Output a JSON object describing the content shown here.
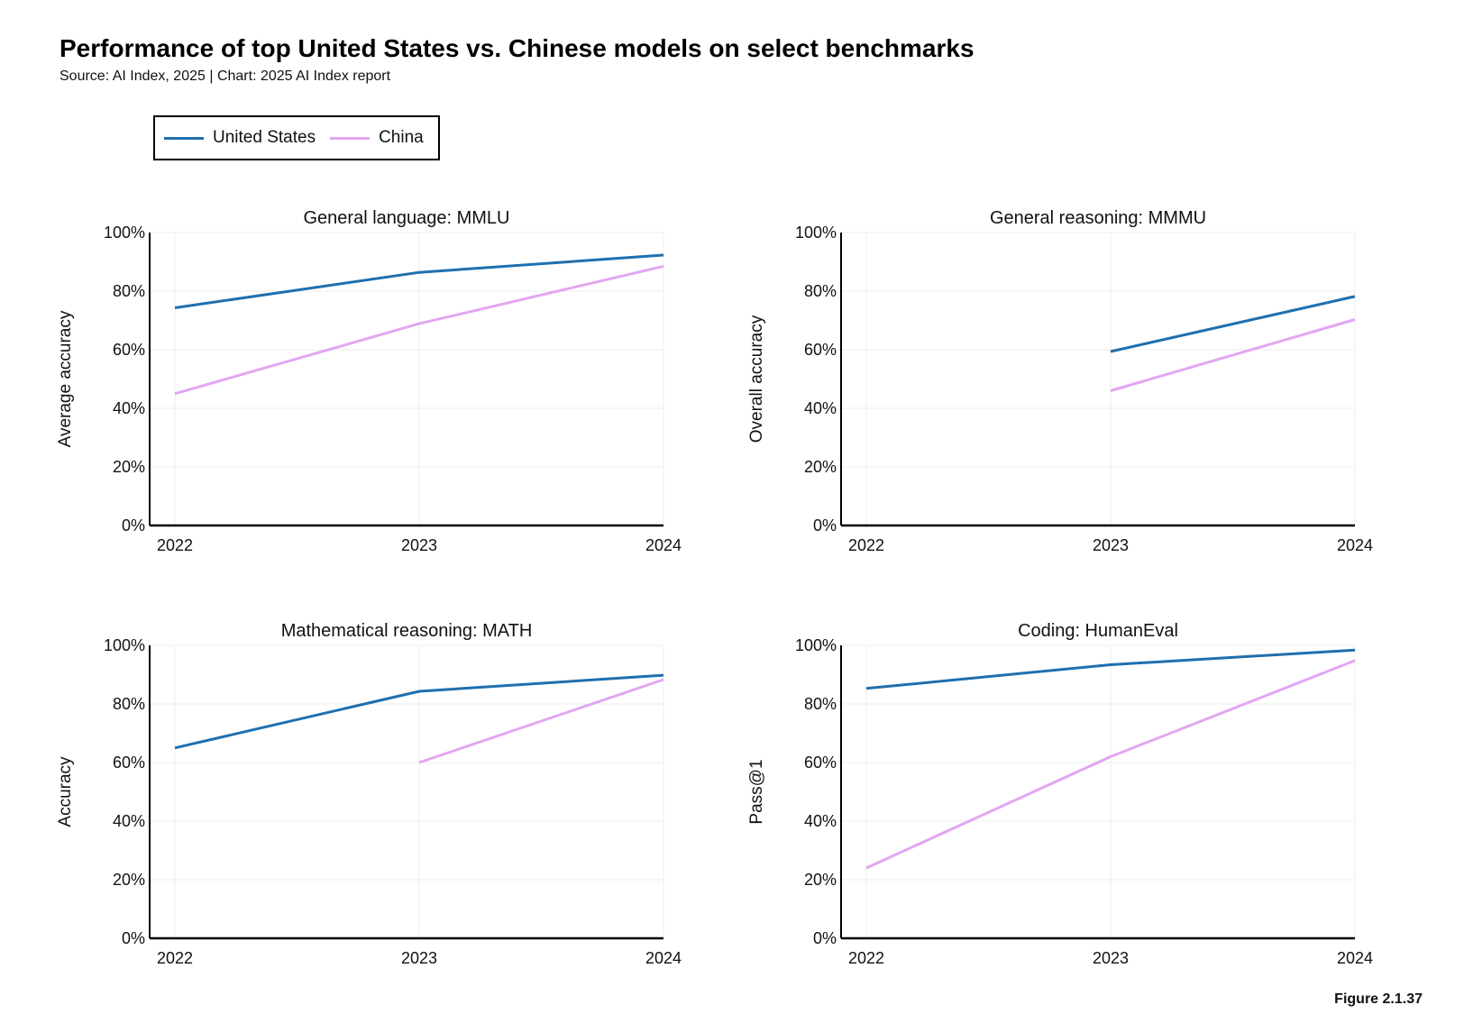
{
  "title": "Performance of top United States vs. Chinese models on select benchmarks",
  "subtitle": "Source: AI Index, 2025 | Chart: 2025 AI Index report",
  "figure_label": "Figure 2.1.37",
  "legend": [
    {
      "name": "United States",
      "color": "#1f6fae"
    },
    {
      "name": "China",
      "color": "#e3a6f2"
    }
  ],
  "chart_data": [
    {
      "type": "line",
      "title": "General language: MMLU",
      "ylabel": "Average accuracy",
      "x": [
        2022,
        2023,
        2024
      ],
      "yticks": [
        "0%",
        "20%",
        "40%",
        "60%",
        "80%",
        "100%"
      ],
      "ylim": [
        0,
        100
      ],
      "series": [
        {
          "name": "United States",
          "values": [
            74.3,
            86.4,
            92.3
          ]
        },
        {
          "name": "China",
          "values": [
            45.0,
            68.9,
            88.5
          ]
        }
      ]
    },
    {
      "type": "line",
      "title": "General reasoning: MMMU",
      "ylabel": "Overall accuracy",
      "x": [
        2022,
        2023,
        2024
      ],
      "yticks": [
        "0%",
        "20%",
        "40%",
        "60%",
        "80%",
        "100%"
      ],
      "ylim": [
        0,
        100
      ],
      "series": [
        {
          "name": "United States",
          "values": [
            null,
            59.4,
            78.2
          ]
        },
        {
          "name": "China",
          "values": [
            null,
            46.0,
            70.3
          ]
        }
      ]
    },
    {
      "type": "line",
      "title": "Mathematical reasoning: MATH",
      "ylabel": "Accuracy",
      "x": [
        2022,
        2023,
        2024
      ],
      "yticks": [
        "0%",
        "20%",
        "40%",
        "60%",
        "80%",
        "100%"
      ],
      "ylim": [
        0,
        100
      ],
      "series": [
        {
          "name": "United States",
          "values": [
            65.0,
            84.3,
            89.8
          ]
        },
        {
          "name": "China",
          "values": [
            null,
            60.0,
            88.3
          ]
        }
      ]
    },
    {
      "type": "line",
      "title": "Coding: HumanEval",
      "ylabel": "Pass@1",
      "x": [
        2022,
        2023,
        2024
      ],
      "yticks": [
        "0%",
        "20%",
        "40%",
        "60%",
        "80%",
        "100%"
      ],
      "ylim": [
        0,
        100
      ],
      "series": [
        {
          "name": "United States",
          "values": [
            85.3,
            93.4,
            98.4
          ]
        },
        {
          "name": "China",
          "values": [
            24.0,
            62.0,
            94.8
          ]
        }
      ]
    }
  ]
}
